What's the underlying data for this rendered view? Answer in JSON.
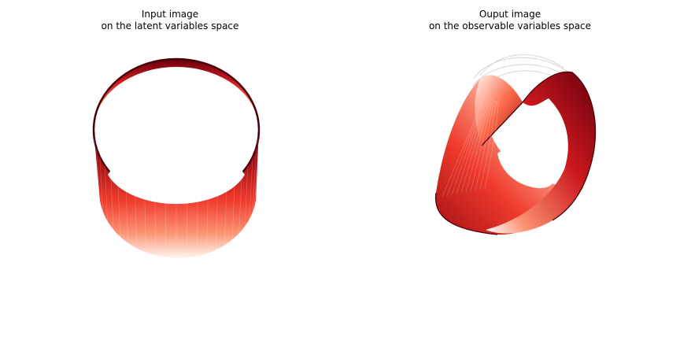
{
  "figure": {
    "panels": [
      {
        "title_line1": "Input image",
        "title_line2": "on the latent variables space",
        "surface": "cylinder",
        "colormap": "Reds"
      },
      {
        "title_line1": "Ouput image",
        "title_line2": "on the observable variables space",
        "surface": "twisted-band",
        "colormap": "Reds"
      }
    ],
    "colors": {
      "dark": "#67000d",
      "mid": "#ef3b2c",
      "light": "#fff5f0",
      "wire": "#c8c8c8"
    }
  }
}
